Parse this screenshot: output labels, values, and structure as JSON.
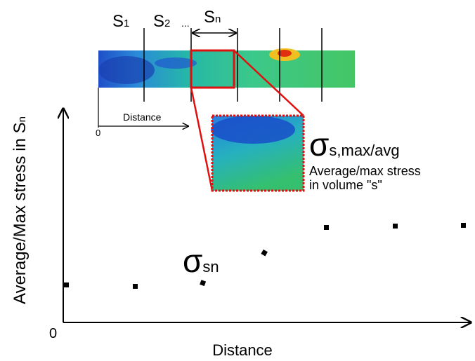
{
  "segments": [
    {
      "main": "S",
      "sub": "1"
    },
    {
      "main": "S",
      "sub": "2"
    },
    {
      "main": "S",
      "sub": "n"
    }
  ],
  "ellipsis": "...",
  "inset": {
    "distance_label": "Distance",
    "origin_label": "0"
  },
  "zoom": {
    "symbol": "σ",
    "symbol_sub": "s,max/avg",
    "caption_line1": "Average/max stress",
    "caption_line2": "in volume \"s\""
  },
  "plot": {
    "y_label_main": "Average/Max stress in S",
    "y_label_sub": "n",
    "x_label": "Distance",
    "origin_label": "0",
    "point_symbol": "σ",
    "point_symbol_sub": "sn"
  }
}
